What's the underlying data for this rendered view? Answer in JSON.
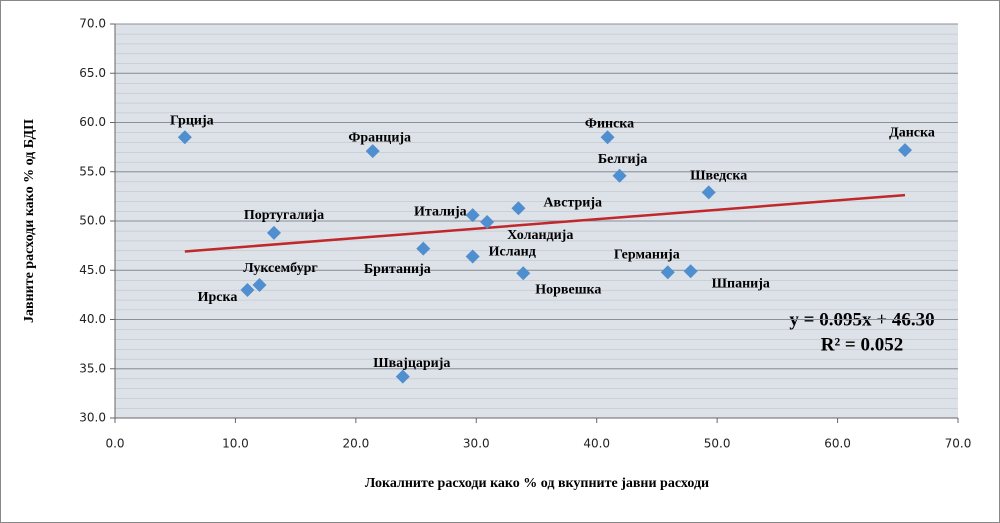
{
  "chart_data": {
    "type": "scatter",
    "x_label": "Локалните расходи како % од вкупните јавни расходи",
    "y_label": "Јавните расходи како % од БДП",
    "points": [
      {
        "name": "Грција",
        "x": 5.8,
        "y": 58.5
      },
      {
        "name": "Франција",
        "x": 21.4,
        "y": 57.1
      },
      {
        "name": "Финска",
        "x": 40.9,
        "y": 58.5
      },
      {
        "name": "Данска",
        "x": 65.6,
        "y": 57.2
      },
      {
        "name": "Белгија",
        "x": 41.9,
        "y": 54.6
      },
      {
        "name": "Шведска",
        "x": 49.3,
        "y": 52.9
      },
      {
        "name": "Австрија",
        "x": 33.5,
        "y": 51.3
      },
      {
        "name": "Италија",
        "x": 29.7,
        "y": 50.6
      },
      {
        "name": "Холандија",
        "x": 30.9,
        "y": 49.9
      },
      {
        "name": "Португалија",
        "x": 13.2,
        "y": 48.8
      },
      {
        "name": "Британија",
        "x": 25.6,
        "y": 47.2
      },
      {
        "name": "Исланд",
        "x": 29.7,
        "y": 46.4
      },
      {
        "name": "Норвешка",
        "x": 33.9,
        "y": 44.7
      },
      {
        "name": "Германија",
        "x": 45.9,
        "y": 44.8
      },
      {
        "name": "Шпанија",
        "x": 47.8,
        "y": 44.9
      },
      {
        "name": "Луксембург",
        "x": 12.0,
        "y": 43.5
      },
      {
        "name": "Ирска",
        "x": 11.0,
        "y": 43.0
      },
      {
        "name": "Швајцарија",
        "x": 23.9,
        "y": 34.2
      }
    ],
    "color": "#4f8fd0",
    "trendline": {
      "color": "#c0282b",
      "equation": "y = 0.095x + 46.30",
      "r_squared": "R² = 0.052"
    },
    "xlim": [
      0,
      70
    ],
    "ylim": [
      30,
      70
    ],
    "xticks": [
      {
        "value": 0,
        "label": "0.0"
      },
      {
        "value": 10,
        "label": "10.0"
      },
      {
        "value": 20,
        "label": "20.0"
      },
      {
        "value": 30,
        "label": "30.0"
      },
      {
        "value": 40,
        "label": "40.0"
      },
      {
        "value": 50,
        "label": "50.0"
      },
      {
        "value": 60,
        "label": "60.0"
      },
      {
        "value": 70,
        "label": "70.0"
      }
    ],
    "yticks": [
      {
        "value": 30,
        "label": "30.0"
      },
      {
        "value": 35,
        "label": "35.0"
      },
      {
        "value": 40,
        "label": "40.0"
      },
      {
        "value": 45,
        "label": "45.0"
      },
      {
        "value": 50,
        "label": "50.0"
      },
      {
        "value": 55,
        "label": "55.0"
      },
      {
        "value": 60,
        "label": "60.0"
      },
      {
        "value": 65,
        "label": "65.0"
      },
      {
        "value": 70,
        "label": "70.0"
      }
    ],
    "grid": true
  }
}
